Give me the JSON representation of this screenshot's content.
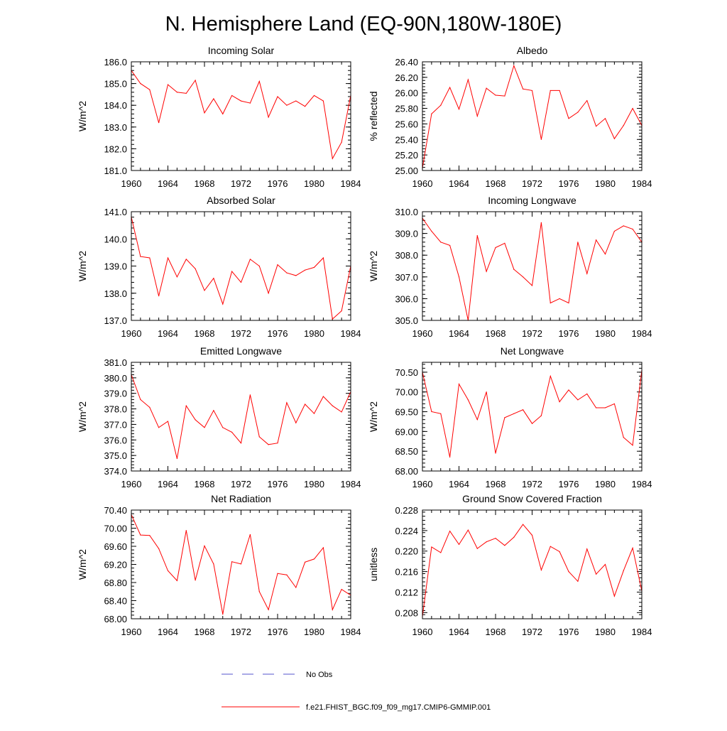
{
  "page": {
    "title": "N. Hemisphere Land (EQ-90N,180W-180E)"
  },
  "legend": {
    "items": [
      {
        "label": "No Obs",
        "color": "#5555cc",
        "style": "dashed"
      },
      {
        "label": "f.e21.FHIST_BGC.f09_f09_mg17.CMIP6-GMMIP.001",
        "color": "#ff0000",
        "style": "solid"
      }
    ]
  },
  "chart_data": [
    {
      "type": "line",
      "title": "Incoming Solar",
      "ylabel": "W/m^2",
      "xlabel": "",
      "xlim": [
        1960,
        1984
      ],
      "ylim": [
        181.0,
        186.0
      ],
      "yticks": [
        "181.0",
        "182.0",
        "183.0",
        "184.0",
        "185.0",
        "186.0"
      ],
      "xticks": [
        "1960",
        "1964",
        "1968",
        "1972",
        "1976",
        "1980",
        "1984"
      ],
      "x": [
        1960,
        1961,
        1962,
        1963,
        1964,
        1965,
        1966,
        1967,
        1968,
        1969,
        1970,
        1971,
        1972,
        1973,
        1974,
        1975,
        1976,
        1977,
        1978,
        1979,
        1980,
        1981,
        1982,
        1983,
        1984
      ],
      "values": [
        185.6,
        185.0,
        184.72,
        183.2,
        184.95,
        184.6,
        184.55,
        185.15,
        183.65,
        184.3,
        183.6,
        184.45,
        184.2,
        184.1,
        185.1,
        183.45,
        184.4,
        184.0,
        184.2,
        183.95,
        184.45,
        184.2,
        181.55,
        182.3,
        184.45
      ],
      "color": "#ff0000"
    },
    {
      "type": "line",
      "title": "Albedo",
      "ylabel": "% reflected",
      "xlabel": "",
      "xlim": [
        1960,
        1984
      ],
      "ylim": [
        25.0,
        26.4
      ],
      "yticks": [
        "25.00",
        "25.20",
        "25.40",
        "25.60",
        "25.80",
        "26.00",
        "26.20",
        "26.40"
      ],
      "xticks": [
        "1960",
        "1964",
        "1968",
        "1972",
        "1976",
        "1980",
        "1984"
      ],
      "x": [
        1960,
        1961,
        1962,
        1963,
        1964,
        1965,
        1966,
        1967,
        1968,
        1969,
        1970,
        1971,
        1972,
        1973,
        1974,
        1975,
        1976,
        1977,
        1978,
        1979,
        1980,
        1981,
        1982,
        1983,
        1984
      ],
      "values": [
        25.03,
        25.73,
        25.84,
        26.07,
        25.79,
        26.17,
        25.7,
        26.06,
        25.97,
        25.96,
        26.35,
        26.05,
        26.03,
        25.4,
        26.03,
        26.03,
        25.67,
        25.75,
        25.9,
        25.57,
        25.67,
        25.41,
        25.58,
        25.8,
        25.58
      ],
      "color": "#ff0000"
    },
    {
      "type": "line",
      "title": "Absorbed Solar",
      "ylabel": "W/m^2",
      "xlabel": "",
      "xlim": [
        1960,
        1984
      ],
      "ylim": [
        137.0,
        141.0
      ],
      "yticks": [
        "137.0",
        "138.0",
        "139.0",
        "140.0",
        "141.0"
      ],
      "xticks": [
        "1960",
        "1964",
        "1968",
        "1972",
        "1976",
        "1980",
        "1984"
      ],
      "x": [
        1960,
        1961,
        1962,
        1963,
        1964,
        1965,
        1966,
        1967,
        1968,
        1969,
        1970,
        1971,
        1972,
        1973,
        1974,
        1975,
        1976,
        1977,
        1978,
        1979,
        1980,
        1981,
        1982,
        1983,
        1984
      ],
      "values": [
        140.8,
        139.35,
        139.3,
        137.9,
        139.3,
        138.6,
        139.25,
        138.9,
        138.1,
        138.55,
        137.6,
        138.8,
        138.4,
        139.25,
        139.0,
        138.0,
        139.05,
        138.75,
        138.65,
        138.85,
        138.95,
        139.3,
        137.05,
        137.35,
        139.0
      ],
      "color": "#ff0000"
    },
    {
      "type": "line",
      "title": "Incoming Longwave",
      "ylabel": "W/m^2",
      "xlabel": "",
      "xlim": [
        1960,
        1984
      ],
      "ylim": [
        305.0,
        310.0
      ],
      "yticks": [
        "305.0",
        "306.0",
        "307.0",
        "308.0",
        "309.0",
        "310.0"
      ],
      "xticks": [
        "1960",
        "1964",
        "1968",
        "1972",
        "1976",
        "1980",
        "1984"
      ],
      "x": [
        1960,
        1961,
        1962,
        1963,
        1964,
        1965,
        1966,
        1967,
        1968,
        1969,
        1970,
        1971,
        1972,
        1973,
        1974,
        1975,
        1976,
        1977,
        1978,
        1979,
        1980,
        1981,
        1982,
        1983,
        1984
      ],
      "values": [
        309.7,
        309.1,
        308.6,
        308.45,
        307.0,
        305.0,
        308.9,
        307.25,
        308.35,
        308.55,
        307.35,
        307.0,
        306.6,
        309.5,
        305.8,
        306.0,
        305.8,
        308.6,
        307.15,
        308.7,
        308.05,
        309.1,
        309.35,
        309.2,
        308.6
      ],
      "color": "#ff0000"
    },
    {
      "type": "line",
      "title": "Emitted Longwave",
      "ylabel": "W/m^2",
      "xlabel": "",
      "xlim": [
        1960,
        1984
      ],
      "ylim": [
        374.0,
        381.0
      ],
      "yticks": [
        "374.0",
        "375.0",
        "376.0",
        "377.0",
        "378.0",
        "379.0",
        "380.0",
        "381.0"
      ],
      "xticks": [
        "1960",
        "1964",
        "1968",
        "1972",
        "1976",
        "1980",
        "1984"
      ],
      "x": [
        1960,
        1961,
        1962,
        1963,
        1964,
        1965,
        1966,
        1967,
        1968,
        1969,
        1970,
        1971,
        1972,
        1973,
        1974,
        1975,
        1976,
        1977,
        1978,
        1979,
        1980,
        1981,
        1982,
        1983,
        1984
      ],
      "values": [
        380.2,
        378.6,
        378.1,
        376.8,
        377.2,
        374.8,
        378.2,
        377.3,
        376.8,
        377.9,
        376.8,
        376.5,
        375.8,
        378.9,
        376.2,
        375.7,
        375.8,
        378.4,
        377.1,
        378.3,
        377.7,
        378.8,
        378.2,
        377.8,
        379.1
      ],
      "color": "#ff0000"
    },
    {
      "type": "line",
      "title": "Net Longwave",
      "ylabel": "W/m^2",
      "xlabel": "",
      "xlim": [
        1960,
        1984
      ],
      "ylim": [
        68.0,
        70.75
      ],
      "yticks": [
        "68.00",
        "68.50",
        "69.00",
        "69.50",
        "70.00",
        "70.50"
      ],
      "xticks": [
        "1960",
        "1964",
        "1968",
        "1972",
        "1976",
        "1980",
        "1984"
      ],
      "x": [
        1960,
        1961,
        1962,
        1963,
        1964,
        1965,
        1966,
        1967,
        1968,
        1969,
        1970,
        1971,
        1972,
        1973,
        1974,
        1975,
        1976,
        1977,
        1978,
        1979,
        1980,
        1981,
        1982,
        1983,
        1984
      ],
      "values": [
        70.5,
        69.5,
        69.45,
        68.35,
        70.2,
        69.8,
        69.3,
        70.0,
        68.45,
        69.35,
        69.45,
        69.55,
        69.2,
        69.4,
        70.4,
        69.75,
        70.05,
        69.8,
        69.95,
        69.6,
        69.6,
        69.7,
        68.85,
        68.65,
        70.55
      ],
      "color": "#ff0000"
    },
    {
      "type": "line",
      "title": "Net Radiation",
      "ylabel": "W/m^2",
      "xlabel": "",
      "xlim": [
        1960,
        1984
      ],
      "ylim": [
        68.0,
        70.4
      ],
      "yticks": [
        "68.00",
        "68.40",
        "68.80",
        "69.20",
        "69.60",
        "70.00",
        "70.40"
      ],
      "xticks": [
        "1960",
        "1964",
        "1968",
        "1972",
        "1976",
        "1980",
        "1984"
      ],
      "x": [
        1960,
        1961,
        1962,
        1963,
        1964,
        1965,
        1966,
        1967,
        1968,
        1969,
        1970,
        1971,
        1972,
        1973,
        1974,
        1975,
        1976,
        1977,
        1978,
        1979,
        1980,
        1981,
        1982,
        1983,
        1984
      ],
      "values": [
        70.3,
        69.85,
        69.84,
        69.55,
        69.06,
        68.84,
        69.95,
        68.85,
        69.61,
        69.21,
        68.1,
        69.26,
        69.21,
        69.86,
        68.6,
        68.2,
        69.0,
        68.97,
        68.69,
        69.25,
        69.32,
        69.57,
        68.2,
        68.65,
        68.52
      ],
      "color": "#ff0000"
    },
    {
      "type": "line",
      "title": "Ground Snow Covered Fraction",
      "ylabel": "unitless",
      "xlabel": "",
      "xlim": [
        1960,
        1984
      ],
      "ylim": [
        0.2068,
        0.228
      ],
      "yticks": [
        "0.208",
        "0.212",
        "0.216",
        "0.220",
        "0.224",
        "0.228"
      ],
      "xticks": [
        "1960",
        "1964",
        "1968",
        "1972",
        "1976",
        "1980",
        "1984"
      ],
      "x": [
        1960,
        1961,
        1962,
        1963,
        1964,
        1965,
        1966,
        1967,
        1968,
        1969,
        1970,
        1971,
        1972,
        1973,
        1974,
        1975,
        1976,
        1977,
        1978,
        1979,
        1980,
        1981,
        1982,
        1983,
        1984
      ],
      "values": [
        0.2072,
        0.2208,
        0.2197,
        0.2239,
        0.2213,
        0.2241,
        0.2205,
        0.2218,
        0.2225,
        0.2211,
        0.2227,
        0.2252,
        0.2231,
        0.2163,
        0.2209,
        0.2199,
        0.216,
        0.2141,
        0.2204,
        0.2155,
        0.2174,
        0.2112,
        0.2162,
        0.2206,
        0.2122
      ],
      "color": "#ff0000"
    }
  ]
}
